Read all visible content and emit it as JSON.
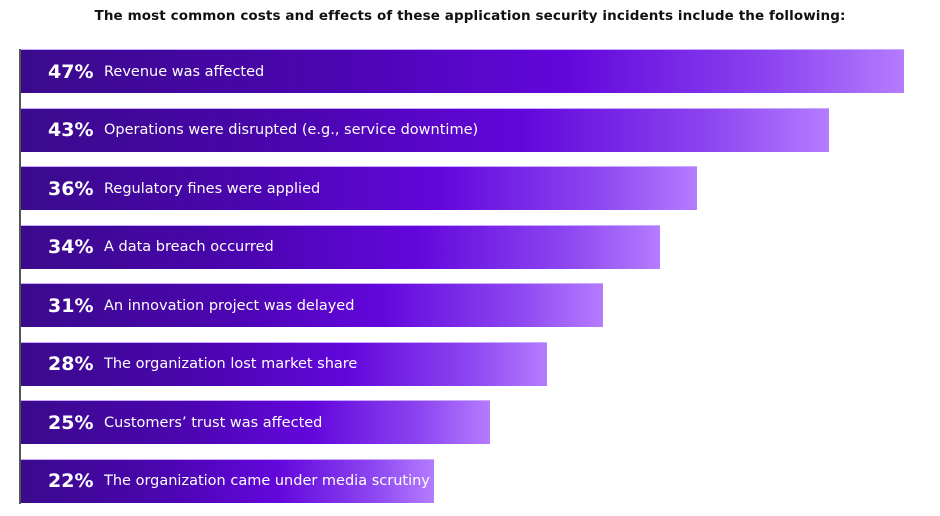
{
  "chart_data": {
    "type": "bar",
    "orientation": "horizontal",
    "title": "The most common costs and effects of these application security incidents include the following:",
    "categories": [
      "Revenue was affected",
      "Operations were disrupted (e.g., service downtime)",
      "Regulatory fines were applied",
      "A data breach occurred",
      "An innovation project was delayed",
      "The organization lost market share",
      "Customers’ trust was affected",
      "The organization came under media scrutiny"
    ],
    "values": [
      47,
      43,
      36,
      34,
      31,
      28,
      25,
      22
    ],
    "value_labels": [
      "47%",
      "43%",
      "36%",
      "34%",
      "31%",
      "28%",
      "25%",
      "22%"
    ],
    "unit": "%",
    "grid": false,
    "colors": {
      "bar_start": "#3a0a8c",
      "bar_mid": "#6306dc",
      "bar_end": "#b47cff"
    }
  }
}
